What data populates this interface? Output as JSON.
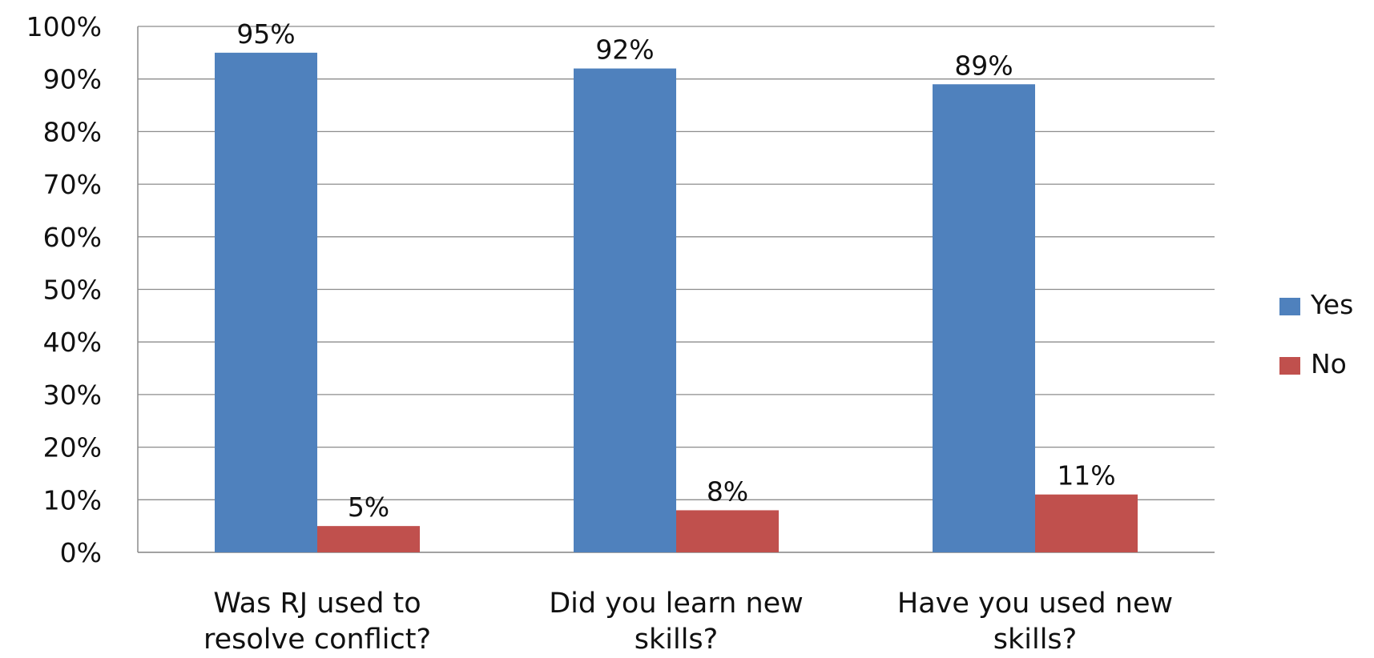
{
  "chart_data": {
    "type": "bar",
    "categories": [
      [
        "Was RJ used to",
        "resolve conflict?"
      ],
      [
        "Did you learn new",
        "skills?"
      ],
      [
        "Have you used new",
        "skills?"
      ]
    ],
    "series": [
      {
        "name": "Yes",
        "values": [
          95,
          92,
          89
        ],
        "labels": [
          "95%",
          "92%",
          "89%"
        ],
        "color": "#4F81BD"
      },
      {
        "name": "No",
        "values": [
          5,
          8,
          11
        ],
        "labels": [
          "5%",
          "8%",
          "11%"
        ],
        "color": "#C0504D"
      }
    ],
    "yticks": [
      0,
      10,
      20,
      30,
      40,
      50,
      60,
      70,
      80,
      90,
      100
    ],
    "ytick_labels": [
      "0%",
      "10%",
      "20%",
      "30%",
      "40%",
      "50%",
      "60%",
      "70%",
      "80%",
      "90%",
      "100%"
    ],
    "ylim": [
      0,
      100
    ],
    "grid": true,
    "legend_position": "right"
  }
}
